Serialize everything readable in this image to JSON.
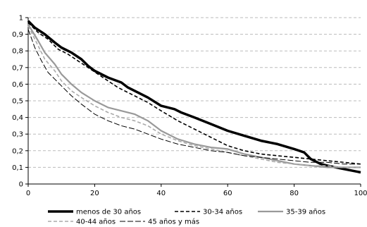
{
  "chart_data": {
    "type": "line",
    "title": "",
    "xlabel": "",
    "ylabel": "",
    "xlim": [
      0,
      100
    ],
    "ylim": [
      0,
      1
    ],
    "x_ticks": [
      "0",
      "20",
      "40",
      "60",
      "80",
      "100"
    ],
    "y_ticks": [
      "0",
      "0,1",
      "0,2",
      "0,3",
      "0,4",
      "0,5",
      "0,6",
      "0,7",
      "0,8",
      "0,9",
      "1"
    ],
    "grid": "horizontal dashed",
    "legend_position": "bottom",
    "series": [
      {
        "name": "menos de 30 años",
        "color": "#000000",
        "style": "solid-thick",
        "x": [
          0,
          2,
          5,
          8,
          10,
          13,
          16,
          18,
          20,
          24,
          28,
          30,
          33,
          36,
          40,
          44,
          46,
          50,
          55,
          60,
          65,
          70,
          75,
          80,
          83,
          85,
          88,
          90,
          95,
          100
        ],
        "y": [
          0.98,
          0.94,
          0.9,
          0.85,
          0.82,
          0.79,
          0.75,
          0.71,
          0.68,
          0.64,
          0.61,
          0.58,
          0.55,
          0.52,
          0.47,
          0.45,
          0.43,
          0.4,
          0.36,
          0.32,
          0.29,
          0.26,
          0.24,
          0.21,
          0.19,
          0.15,
          0.12,
          0.11,
          0.09,
          0.07
        ]
      },
      {
        "name": "30-34 años",
        "color": "#000000",
        "style": "dashed",
        "x": [
          0,
          3,
          6,
          9,
          12,
          15,
          18,
          21,
          24,
          27,
          30,
          33,
          36,
          40,
          45,
          50,
          55,
          60,
          65,
          70,
          75,
          80,
          85,
          90,
          95,
          100
        ],
        "y": [
          0.97,
          0.91,
          0.87,
          0.81,
          0.78,
          0.74,
          0.7,
          0.66,
          0.62,
          0.58,
          0.55,
          0.52,
          0.49,
          0.44,
          0.38,
          0.33,
          0.28,
          0.23,
          0.2,
          0.18,
          0.17,
          0.16,
          0.15,
          0.14,
          0.13,
          0.12
        ]
      },
      {
        "name": "35-39 años",
        "color": "#999999",
        "style": "solid-medium",
        "x": [
          0,
          3,
          5,
          8,
          10,
          13,
          16,
          20,
          24,
          28,
          32,
          36,
          40,
          45,
          50,
          55,
          60,
          65,
          70,
          75,
          80,
          85,
          90,
          95,
          100
        ],
        "y": [
          0.96,
          0.86,
          0.79,
          0.72,
          0.66,
          0.6,
          0.55,
          0.5,
          0.46,
          0.44,
          0.42,
          0.38,
          0.32,
          0.27,
          0.24,
          0.22,
          0.21,
          0.18,
          0.16,
          0.14,
          0.12,
          0.11,
          0.1,
          0.1,
          0.1
        ]
      },
      {
        "name": "40-44 años",
        "color": "#aaaaaa",
        "style": "dashed",
        "x": [
          0,
          3,
          5,
          8,
          10,
          13,
          16,
          20,
          24,
          28,
          32,
          36,
          40,
          45,
          50,
          55,
          60,
          65,
          70,
          75,
          80,
          85,
          90,
          95,
          100
        ],
        "y": [
          0.95,
          0.83,
          0.75,
          0.68,
          0.62,
          0.56,
          0.52,
          0.47,
          0.43,
          0.4,
          0.38,
          0.35,
          0.3,
          0.26,
          0.23,
          0.21,
          0.19,
          0.17,
          0.15,
          0.13,
          0.12,
          0.11,
          0.11,
          0.1,
          0.1
        ]
      },
      {
        "name": "45 años y más",
        "color": "#000000",
        "style": "dash-dot-thin",
        "x": [
          0,
          2,
          4,
          6,
          8,
          10,
          13,
          16,
          20,
          24,
          28,
          32,
          36,
          40,
          45,
          50,
          55,
          60,
          65,
          70,
          75,
          80,
          85,
          90,
          95,
          100
        ],
        "y": [
          0.93,
          0.82,
          0.74,
          0.67,
          0.63,
          0.59,
          0.53,
          0.48,
          0.42,
          0.38,
          0.35,
          0.33,
          0.3,
          0.27,
          0.24,
          0.22,
          0.2,
          0.19,
          0.17,
          0.16,
          0.15,
          0.14,
          0.13,
          0.13,
          0.12,
          0.12
        ]
      }
    ]
  }
}
